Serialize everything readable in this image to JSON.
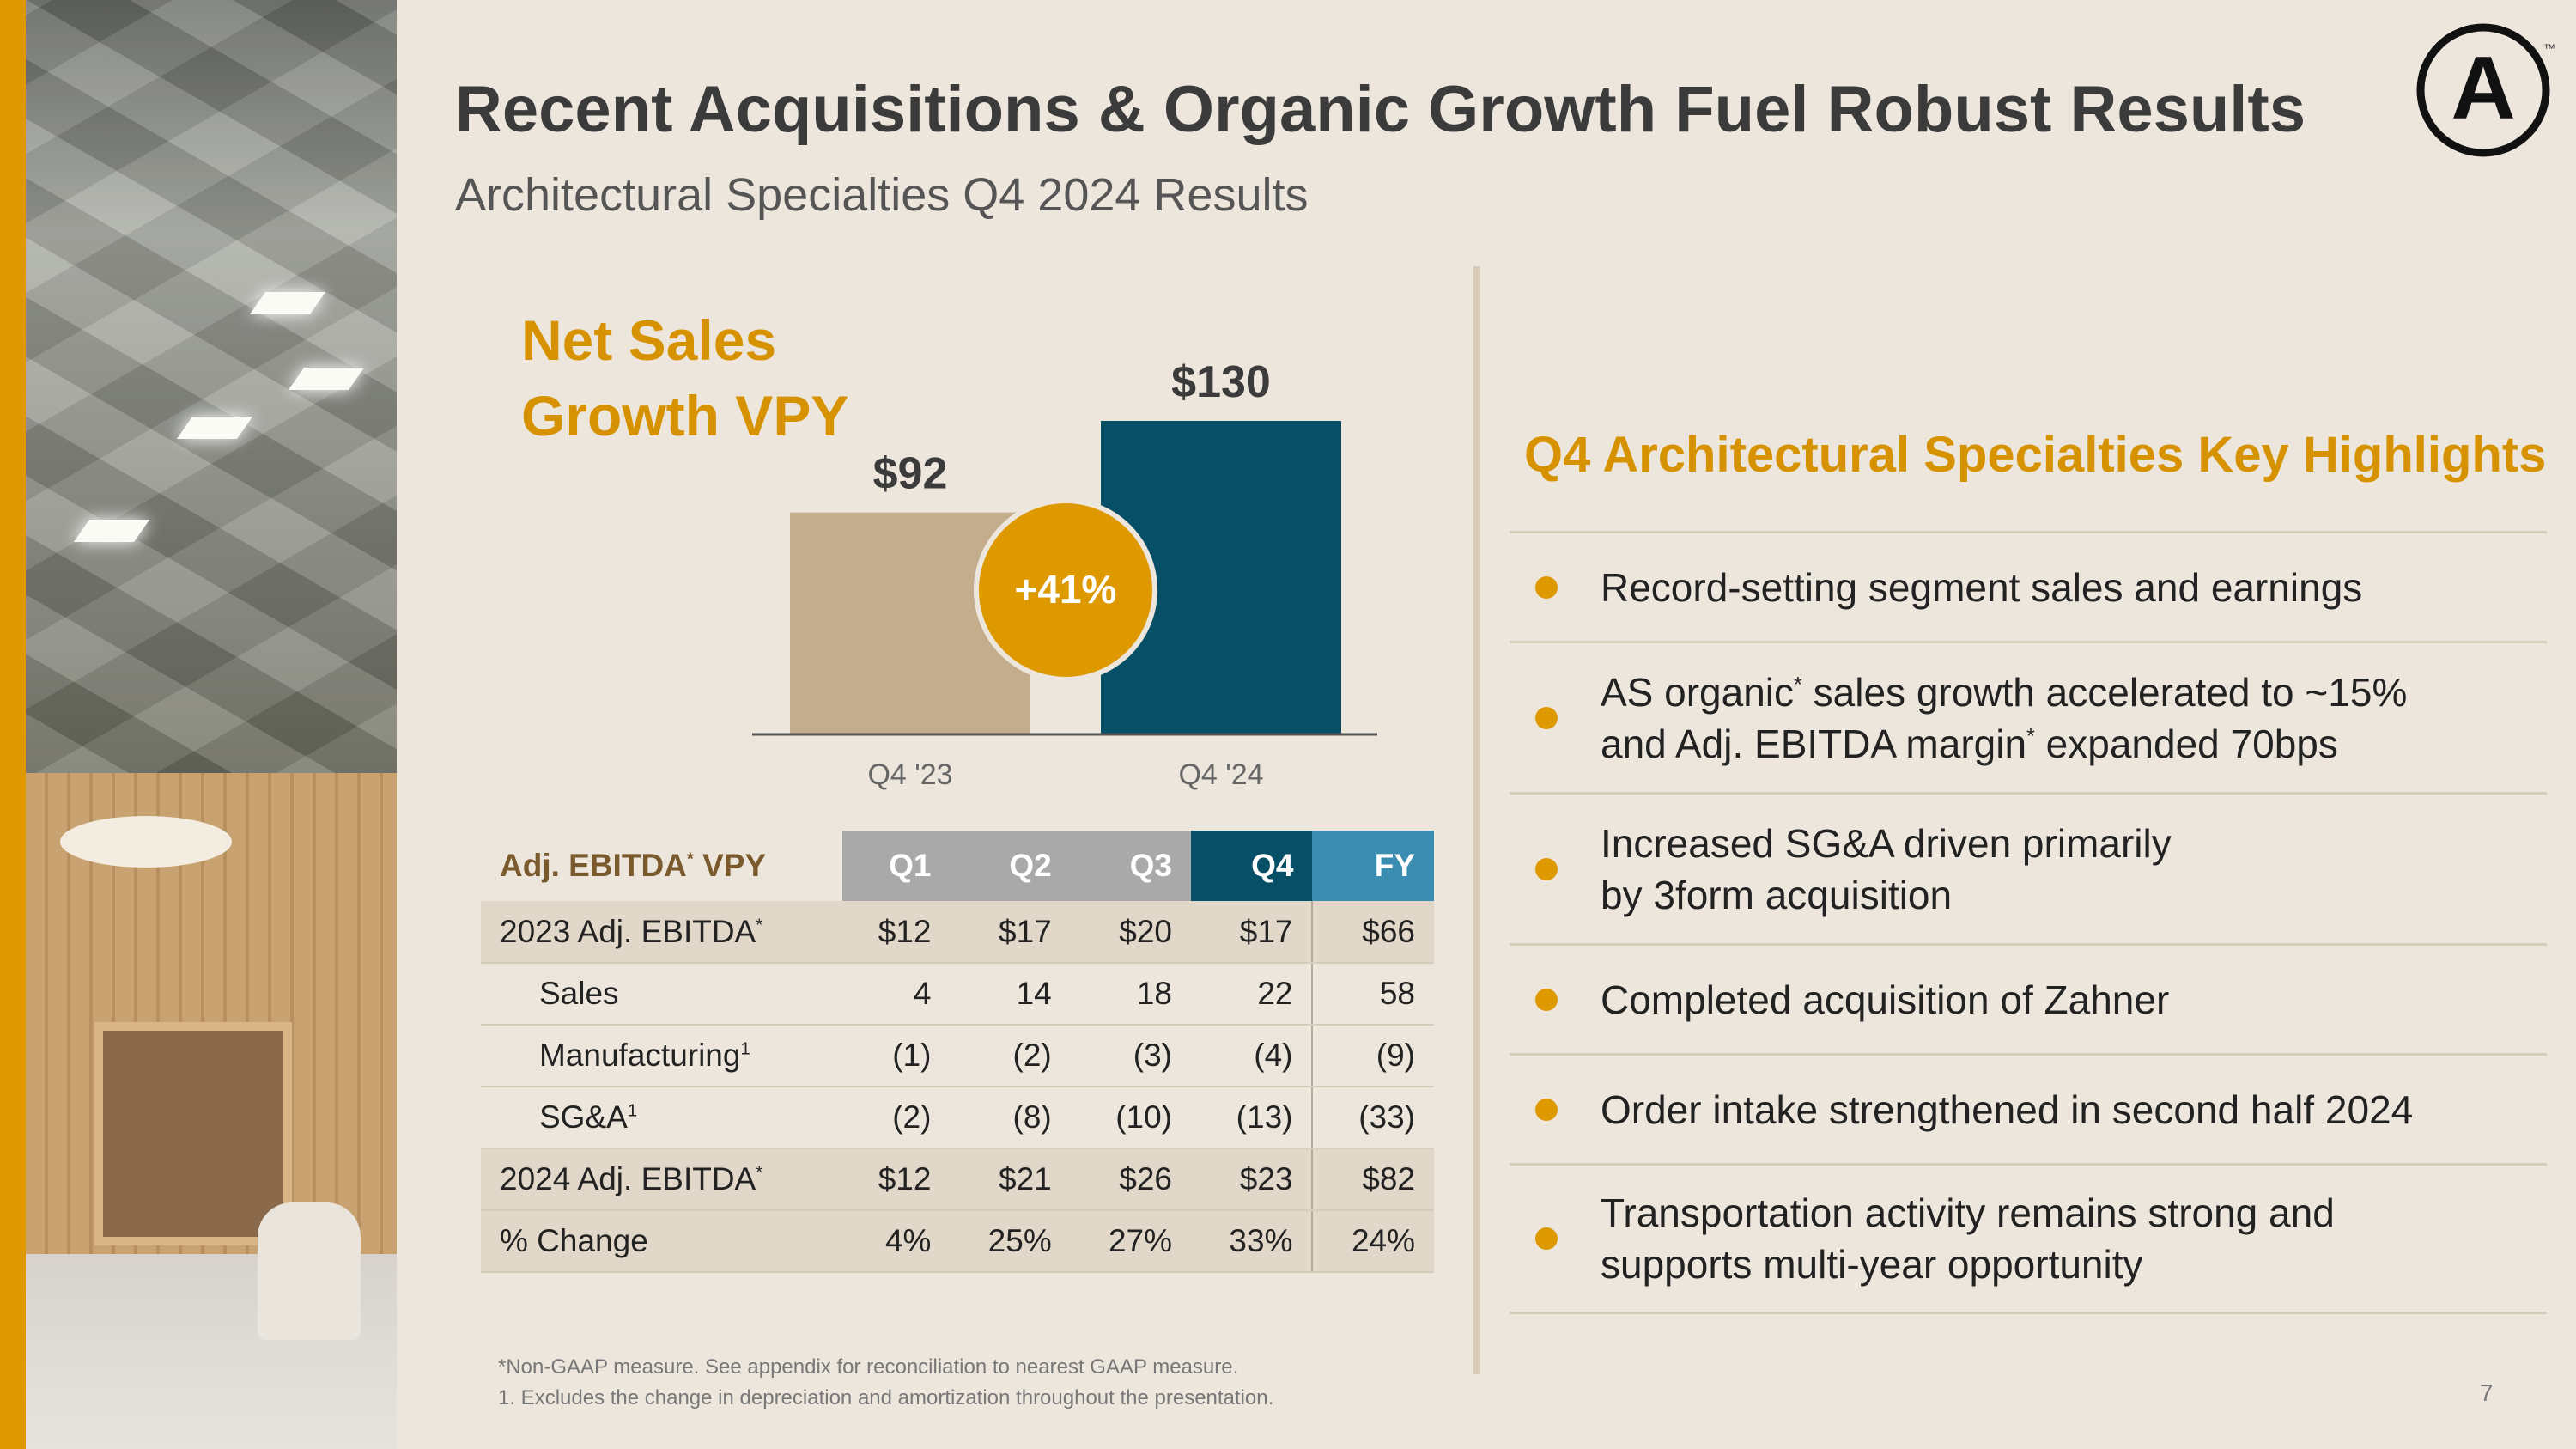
{
  "header": {
    "title": "Recent Acquisitions & Organic Growth Fuel Robust Results",
    "subtitle": "Architectural Specialties Q4 2024 Results",
    "logo_letter": "A",
    "logo_tm": "™"
  },
  "net_sales": {
    "title_line1": "Net Sales",
    "title_line2": "Growth VPY"
  },
  "chart_data": {
    "type": "bar",
    "categories": [
      "Q4 '23",
      "Q4 '24"
    ],
    "values": [
      92,
      130
    ],
    "value_labels": [
      "$92",
      "$130"
    ],
    "colors": [
      "#c4ad8c",
      "#074f66"
    ],
    "growth_badge": "+41%",
    "badge_color": "#de9800"
  },
  "table": {
    "header_label": "Adj. EBITDA",
    "header_label_suffix": " VPY",
    "asterisk": "*",
    "columns": [
      "Q1",
      "Q2",
      "Q3",
      "Q4",
      "FY"
    ],
    "rows": [
      {
        "label": "2023 Adj. EBITDA",
        "sup": "*",
        "values": [
          "$12",
          "$17",
          "$20",
          "$17",
          "$66"
        ]
      },
      {
        "label": "Sales",
        "sup": "",
        "values": [
          "4",
          "14",
          "18",
          "22",
          "58"
        ]
      },
      {
        "label": "Manufacturing",
        "sup": "1",
        "values": [
          "(1)",
          "(2)",
          "(3)",
          "(4)",
          "(9)"
        ]
      },
      {
        "label": "SG&A",
        "sup": "1",
        "values": [
          "(2)",
          "(8)",
          "(10)",
          "(13)",
          "(33)"
        ]
      },
      {
        "label": "2024 Adj. EBITDA",
        "sup": "*",
        "values": [
          "$12",
          "$21",
          "$26",
          "$23",
          "$82"
        ]
      },
      {
        "label": "% Change",
        "sup": "",
        "values": [
          "4%",
          "25%",
          "27%",
          "33%",
          "24%"
        ]
      }
    ]
  },
  "highlights": {
    "title": "Q4 Architectural Specialties Key Highlights",
    "items": [
      {
        "lines": [
          "Record-setting segment sales and earnings"
        ]
      },
      {
        "lines": [
          "AS organic* sales growth accelerated to ~15%",
          "and Adj. EBITDA margin* expanded 70bps"
        ]
      },
      {
        "lines": [
          "Increased SG&A driven primarily",
          "by 3form acquisition"
        ]
      },
      {
        "lines": [
          "Completed acquisition of Zahner"
        ]
      },
      {
        "lines": [
          "Order intake strengthened in second half 2024"
        ]
      },
      {
        "lines": [
          "Transportation activity remains strong and",
          "supports multi-year opportunity"
        ]
      }
    ]
  },
  "footnotes": {
    "line1": "*Non-GAAP measure. See appendix for reconciliation to nearest GAAP measure.",
    "line2": "1. Excludes the change in depreciation and amortization throughout the presentation."
  },
  "page_number": "7"
}
